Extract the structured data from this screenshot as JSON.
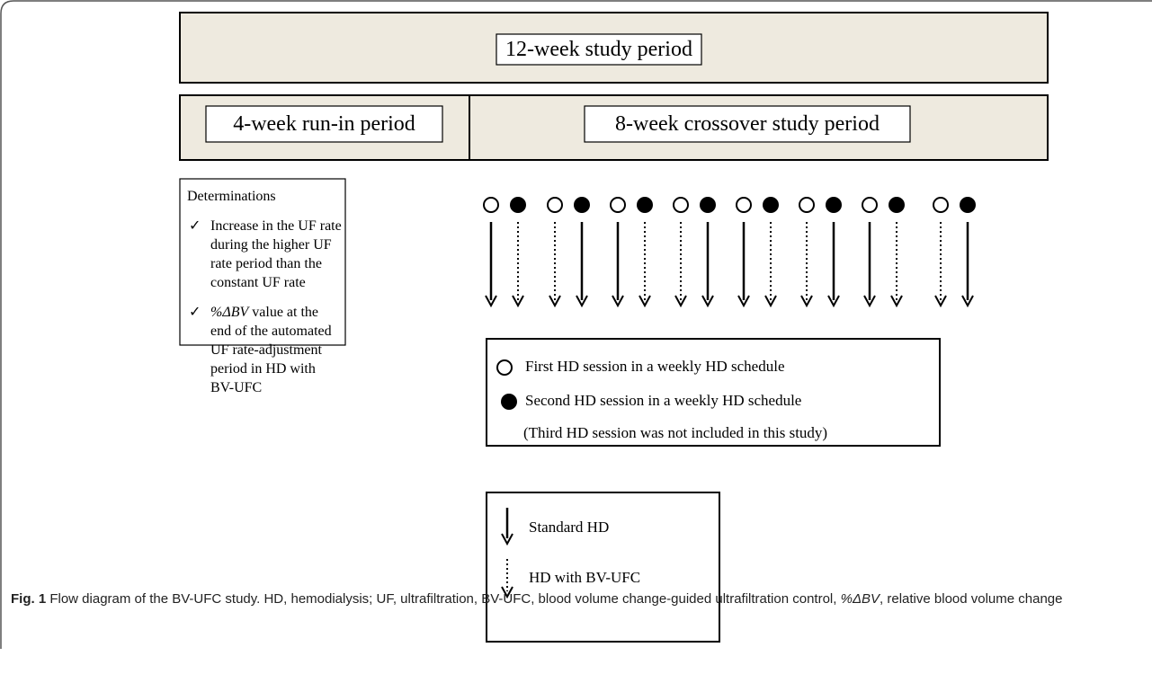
{
  "banner": {
    "label": "12-week study period"
  },
  "phases": [
    {
      "label": "4-week run-in period"
    },
    {
      "label": "8-week crossover study period"
    }
  ],
  "determinations": {
    "title": "Determinations",
    "items": [
      {
        "term": "",
        "text": "Increase in the UF rate during the higher UF rate period than the constant UF rate"
      },
      {
        "term": "%ΔBV",
        "text": " value at the end of the automated UF rate-adjustment period in HD with BV-UFC"
      }
    ]
  },
  "sessions_legend": {
    "items": [
      "First HD session in a weekly HD schedule",
      "Second HD session in a weekly HD schedule"
    ],
    "note": "(Third HD session was not included in this study)"
  },
  "arrows_legend": {
    "items": [
      "Standard HD",
      "HD with BV-UFC"
    ]
  },
  "caption": {
    "label": "Fig. 1",
    "text_before": " Flow diagram of the BV-UFC study. HD, hemodialysis; UF, ultrafiltration, BV-UFC, blood volume change-guided ultrafiltration control, ",
    "term": "%ΔBV",
    "text_after": ", relative blood volume change"
  }
}
